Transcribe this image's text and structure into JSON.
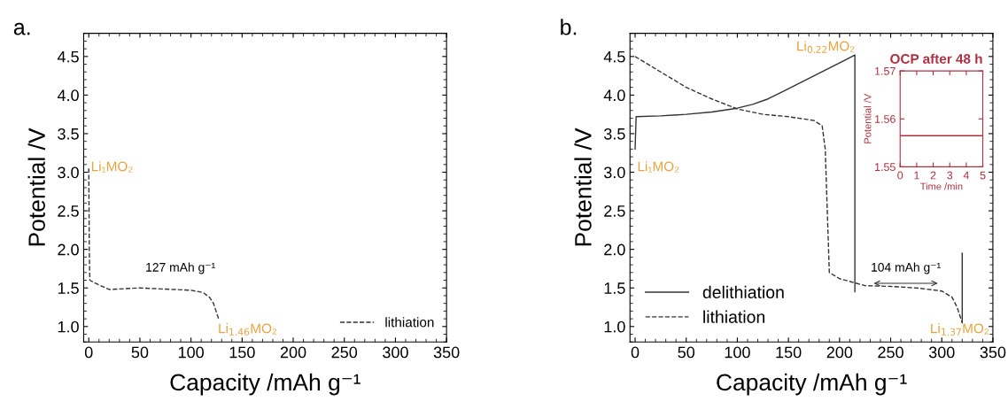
{
  "chart_data": [
    {
      "type": "line",
      "title": "a.",
      "xlabel": "Capacity /mAh g⁻¹",
      "ylabel": "Potential /V",
      "xlim": [
        -5,
        350
      ],
      "ylim": [
        0.8,
        4.8
      ],
      "xticks": [
        0,
        50,
        100,
        150,
        200,
        250,
        300,
        350
      ],
      "yticks": [
        {
          "value": 1.0,
          "label": "1.0"
        },
        1.5,
        {
          "value": 2.0,
          "label": "2.0"
        },
        2.5,
        {
          "value": 3.0,
          "label": "3.0"
        },
        3.5,
        {
          "value": 4.0,
          "label": "4.0"
        },
        4.5
      ],
      "legend": "bottom right",
      "grid": false,
      "series": [
        {
          "name": "lithiation",
          "color": "#333333",
          "line_style": "dashed",
          "x": [
            0,
            0.5,
            1,
            5,
            20,
            50,
            100,
            112,
            118,
            122,
            127
          ],
          "values": [
            3.05,
            2.0,
            1.6,
            1.57,
            1.48,
            1.5,
            1.47,
            1.44,
            1.38,
            1.3,
            1.1
          ]
        }
      ],
      "annotations": [
        "Li₁MO₂",
        "Li$_{1.46}$MO₂",
        "127 mAh g⁻¹"
      ]
    },
    {
      "type": "line",
      "title": "b.",
      "xlabel": "Capacity /mAh g⁻¹",
      "ylabel": "Potential /V",
      "xlim": [
        -5,
        350
      ],
      "ylim": [
        0.8,
        4.8
      ],
      "xticks": [
        0,
        50,
        100,
        150,
        200,
        250,
        300,
        350
      ],
      "yticks": [
        {
          "value": 1.0,
          "label": "1.0"
        },
        1.5,
        {
          "value": 2.0,
          "label": "2.0"
        },
        2.5,
        {
          "value": 3.0,
          "label": "3.0"
        },
        3.5,
        {
          "value": 4.0,
          "label": "4.0"
        },
        4.5
      ],
      "legend": "bottom left",
      "grid": false,
      "series": [
        {
          "name": "delithiation",
          "color": "#333333",
          "line_style": "solid",
          "x": [
            0,
            1,
            25,
            50,
            75,
            100,
            115,
            130,
            145,
            160,
            175,
            190,
            205,
            215,
            215
          ],
          "values": [
            3.3,
            3.72,
            3.73,
            3.75,
            3.78,
            3.83,
            3.88,
            3.95,
            4.05,
            4.15,
            4.25,
            4.35,
            4.45,
            4.52,
            1.45
          ]
        },
        {
          "name": "lithiation",
          "color": "#333333",
          "line_style": "dashed",
          "x": [
            0,
            25,
            50,
            75,
            100,
            125,
            150,
            175,
            183,
            186,
            188,
            190,
            200,
            225,
            250,
            275,
            300,
            310,
            315,
            320
          ],
          "values": [
            4.5,
            4.3,
            4.1,
            3.95,
            3.82,
            3.75,
            3.72,
            3.67,
            3.6,
            3.3,
            2.5,
            1.7,
            1.62,
            1.53,
            1.52,
            1.5,
            1.46,
            1.38,
            1.25,
            1.05
          ]
        },
        {
          "color": "#333333",
          "line_style": "solid",
          "x": [
            320,
            320
          ],
          "values": [
            1.05,
            1.95
          ]
        }
      ],
      "annotations": [
        "Li₁MO₂",
        "Li$_{0.22}$MO₂",
        "Li$_{1.37}$MO₂",
        "104 mAh g⁻¹"
      ]
    },
    {
      "type": "line",
      "title": "OCP after 48 h",
      "xlabel": "Time /min",
      "ylabel": "Potential /V",
      "xlim": [
        0,
        5
      ],
      "ylim": [
        1.55,
        1.57
      ],
      "xticks": [
        0,
        1,
        2,
        3,
        4,
        5
      ],
      "yticks": [
        1.55,
        1.56,
        1.57
      ],
      "grid": false,
      "series": [
        {
          "color": "#b03040",
          "line_style": "solid",
          "x": [
            0,
            0.5,
            1,
            1.5,
            2,
            2.5,
            3,
            3.5,
            4,
            4.5,
            5
          ],
          "values": [
            1.5565,
            1.5565,
            1.5565,
            1.5565,
            1.5565,
            1.5565,
            1.5565,
            1.5565,
            1.5565,
            1.5565,
            1.5565
          ]
        }
      ]
    }
  ]
}
